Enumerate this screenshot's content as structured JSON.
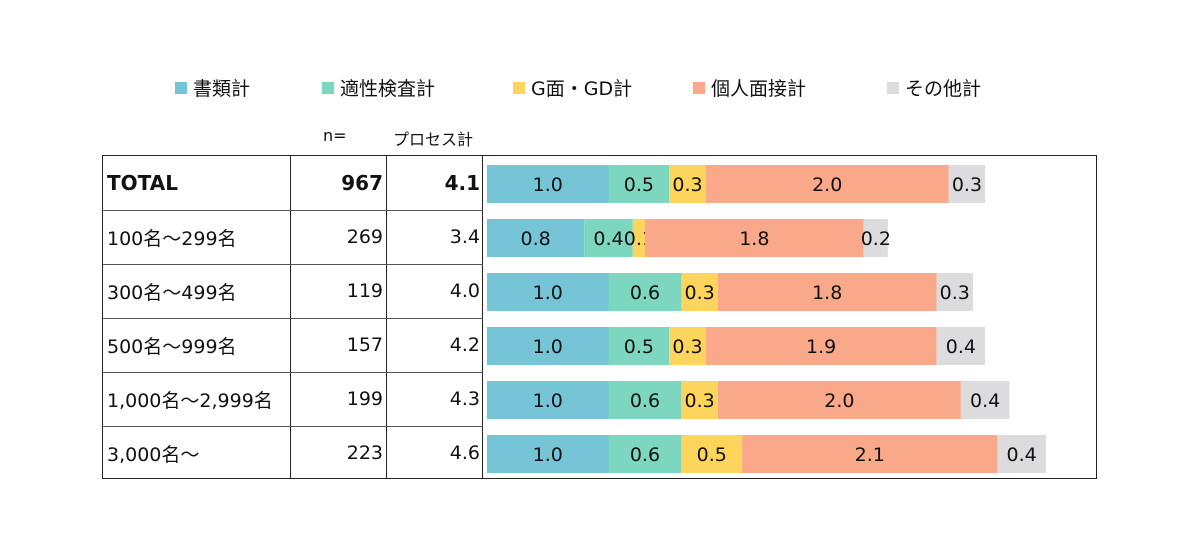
{
  "legend": [
    {
      "label": "書類計",
      "color": "#75C5D7"
    },
    {
      "label": "適性検査計",
      "color": "#7DD6C0"
    },
    {
      "label": "G面・GD計",
      "color": "#FDD45C"
    },
    {
      "label": "個人面接計",
      "color": "#F9A88A"
    },
    {
      "label": "その他計",
      "color": "#DCDCDE"
    }
  ],
  "headers": {
    "n": "n=",
    "process": "プロセス計"
  },
  "rows": [
    {
      "label": "TOTAL",
      "n": "967",
      "total": "4.1",
      "bold": true
    },
    {
      "label": "100名～299名",
      "n": "269",
      "total": "3.4"
    },
    {
      "label": "300名～499名",
      "n": "119",
      "total": "4.0"
    },
    {
      "label": "500名～999名",
      "n": "157",
      "total": "4.2"
    },
    {
      "label": "1,000名～2,999名",
      "n": "199",
      "total": "4.3"
    },
    {
      "label": "3,000名～",
      "n": "223",
      "total": "4.6"
    }
  ],
  "chart_data": {
    "type": "bar",
    "orientation": "horizontal",
    "stacked": true,
    "categories": [
      "TOTAL",
      "100名～299名",
      "300名～499名",
      "500名～999名",
      "1,000名～2,999名",
      "3,000名～"
    ],
    "series": [
      {
        "name": "書類計",
        "values": [
          1.0,
          0.8,
          1.0,
          1.0,
          1.0,
          1.0
        ]
      },
      {
        "name": "適性検査計",
        "values": [
          0.5,
          0.4,
          0.6,
          0.5,
          0.6,
          0.6
        ]
      },
      {
        "name": "G面・GD計",
        "values": [
          0.3,
          0.1,
          0.3,
          0.3,
          0.3,
          0.5
        ]
      },
      {
        "name": "個人面接計",
        "values": [
          2.0,
          1.8,
          1.8,
          1.9,
          2.0,
          2.1
        ]
      },
      {
        "name": "その他計",
        "values": [
          0.3,
          0.2,
          0.3,
          0.4,
          0.4,
          0.4
        ]
      }
    ],
    "legend_position": "top",
    "grid": false
  }
}
